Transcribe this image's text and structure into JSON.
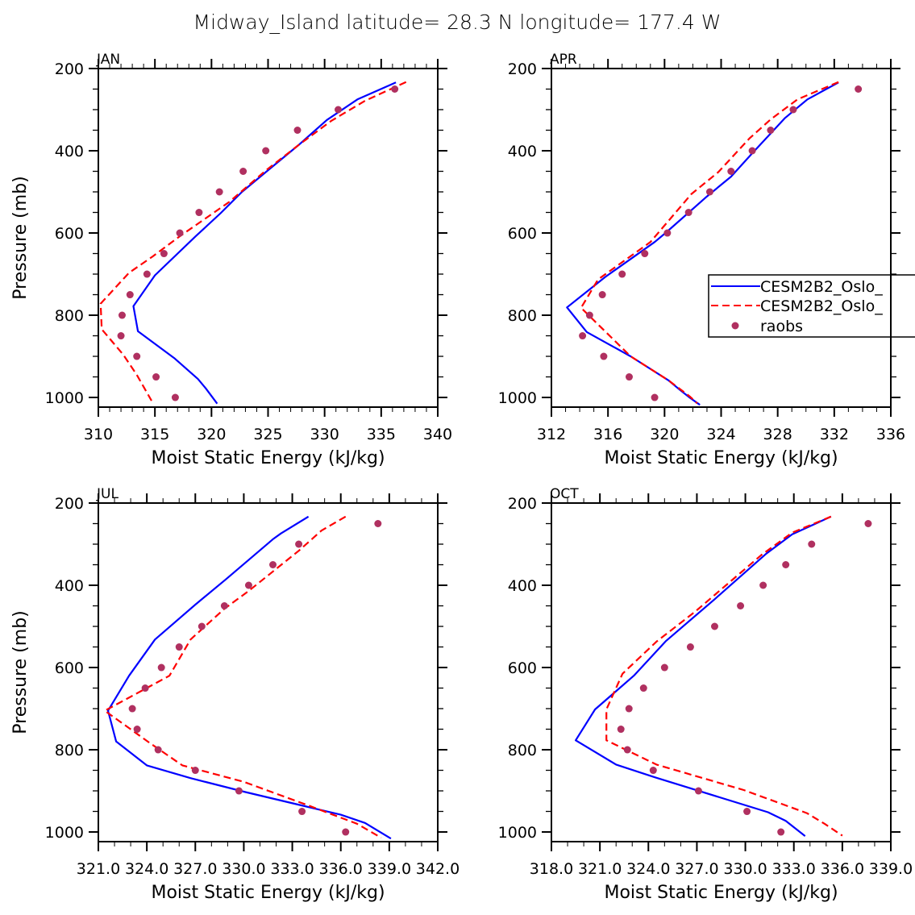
{
  "figure": {
    "title": "Midway_Island   latitude= 28.3 N longitude= 177.4 W"
  },
  "legend": {
    "location": "inside APR panel, right-center (clipped at image edge)",
    "entries": [
      {
        "label": "CESM2B2_Oslo_",
        "style": "solid",
        "color": "#0000FF"
      },
      {
        "label": "CESM2B2_Oslo_",
        "style": "dashed",
        "color": "#FF0000"
      },
      {
        "label": "raobs",
        "style": "marker",
        "color": "#B03060"
      }
    ]
  },
  "chart_data": [
    {
      "type": "line",
      "panel": "JAN",
      "title": "JAN",
      "xlabel": "Moist Static Energy (kJ/kg)",
      "ylabel": "Pressure (mb)",
      "xlim": [
        310,
        340
      ],
      "ylim": [
        1023.5,
        200
      ],
      "y_inverted": true,
      "xticks": [
        310,
        315,
        320,
        325,
        330,
        335,
        340
      ],
      "xtick_labels": [
        "310",
        "315",
        "320",
        "325",
        "330",
        "335",
        "340"
      ],
      "x_minor_per_major": 4,
      "yticks": [
        200,
        400,
        600,
        800,
        1000
      ],
      "ytick_labels": [
        "200",
        "400",
        "600",
        "800",
        "1000"
      ],
      "y_minor_step": 50,
      "grid": false,
      "series": [
        {
          "name": "CESM2B2_Oslo_ (solid)",
          "color": "#0000FF",
          "style": "solid",
          "points": [
            [
              336.3,
              234
            ],
            [
              332.9,
              275
            ],
            [
              330.2,
              325
            ],
            [
              327.7,
              386
            ],
            [
              324.8,
              452
            ],
            [
              322.7,
              500
            ],
            [
              320.8,
              552
            ],
            [
              318.6,
              608
            ],
            [
              315.0,
              703
            ],
            [
              313.1,
              778
            ],
            [
              313.5,
              839
            ],
            [
              316.7,
              904
            ],
            [
              318.8,
              955
            ],
            [
              319.5,
              978
            ],
            [
              320.5,
              1015
            ]
          ]
        },
        {
          "name": "CESM2B2_Oslo_ (dashed)",
          "color": "#FF0000",
          "style": "dashed",
          "points": [
            [
              337.2,
              233
            ],
            [
              333.6,
              278
            ],
            [
              330.6,
              327
            ],
            [
              327.7,
              386
            ],
            [
              324.8,
              448
            ],
            [
              321.6,
              524
            ],
            [
              317.2,
              608
            ],
            [
              314.8,
              657
            ],
            [
              312.7,
              697
            ],
            [
              310.2,
              772
            ],
            [
              310.3,
              834
            ],
            [
              312.2,
              896
            ],
            [
              313.4,
              945
            ],
            [
              314.7,
              1008
            ]
          ]
        },
        {
          "name": "raobs",
          "color": "#B03060",
          "style": "marker",
          "points": [
            [
              336.2,
              250
            ],
            [
              331.2,
              300
            ],
            [
              327.6,
              350
            ],
            [
              324.8,
              400
            ],
            [
              322.8,
              450
            ],
            [
              320.7,
              500
            ],
            [
              318.9,
              550
            ],
            [
              317.2,
              600
            ],
            [
              315.8,
              650
            ],
            [
              314.3,
              700
            ],
            [
              312.8,
              750
            ],
            [
              312.1,
              800
            ],
            [
              312.0,
              850
            ],
            [
              313.4,
              900
            ],
            [
              315.1,
              950
            ],
            [
              316.8,
              1000
            ]
          ]
        }
      ]
    },
    {
      "type": "line",
      "panel": "APR",
      "title": "APR",
      "xlabel": "Moist Static Energy (kJ/kg)",
      "ylabel": "",
      "xlim": [
        312,
        336
      ],
      "ylim": [
        1023.5,
        200
      ],
      "y_inverted": true,
      "xticks": [
        312,
        316,
        320,
        324,
        328,
        332,
        336
      ],
      "xtick_labels": [
        "312",
        "316",
        "320",
        "324",
        "328",
        "332",
        "336"
      ],
      "x_minor_per_major": 3,
      "yticks": [
        200,
        400,
        600,
        800,
        1000
      ],
      "ytick_labels": [
        "200",
        "400",
        "600",
        "800",
        "1000"
      ],
      "y_minor_step": 50,
      "grid": false,
      "series": [
        {
          "name": "CESM2B2_Oslo_ (solid)",
          "color": "#0000FF",
          "style": "solid",
          "points": [
            [
              332.3,
              234
            ],
            [
              330.1,
              275
            ],
            [
              328.5,
              321
            ],
            [
              326.2,
              406
            ],
            [
              324.7,
              463
            ],
            [
              323.0,
              511
            ],
            [
              320.1,
              599
            ],
            [
              319.3,
              622
            ],
            [
              315.8,
              707
            ],
            [
              313.1,
              781
            ],
            [
              314.5,
              841
            ],
            [
              317.6,
              900
            ],
            [
              320.3,
              959
            ],
            [
              321.1,
              982
            ],
            [
              321.8,
              1001
            ],
            [
              322.5,
              1018
            ]
          ]
        },
        {
          "name": "CESM2B2_Oslo_ (dashed)",
          "color": "#FF0000",
          "style": "dashed",
          "points": [
            [
              332.3,
              233
            ],
            [
              330.5,
              259
            ],
            [
              329.4,
              275
            ],
            [
              327.5,
              324
            ],
            [
              326.0,
              370
            ],
            [
              323.8,
              452
            ],
            [
              321.9,
              505
            ],
            [
              319.0,
              622
            ],
            [
              315.3,
              713
            ],
            [
              314.1,
              782
            ],
            [
              317.6,
              900
            ],
            [
              320.3,
              959
            ],
            [
              321.8,
              998
            ],
            [
              322.3,
              1014
            ]
          ]
        },
        {
          "name": "raobs",
          "color": "#B03060",
          "style": "marker",
          "points": [
            [
              333.7,
              250
            ],
            [
              329.1,
              300
            ],
            [
              327.5,
              350
            ],
            [
              326.2,
              400
            ],
            [
              324.7,
              450
            ],
            [
              323.2,
              500
            ],
            [
              321.7,
              550
            ],
            [
              320.2,
              600
            ],
            [
              318.6,
              650
            ],
            [
              317.0,
              700
            ],
            [
              315.6,
              750
            ],
            [
              314.7,
              800
            ],
            [
              314.2,
              850
            ],
            [
              315.7,
              900
            ],
            [
              317.5,
              950
            ],
            [
              319.3,
              1000
            ]
          ]
        }
      ]
    },
    {
      "type": "line",
      "panel": "JUL",
      "title": "JUL",
      "xlabel": "Moist Static Energy (kJ/kg)",
      "ylabel": "Pressure (mb)",
      "xlim": [
        321,
        342
      ],
      "ylim": [
        1023.5,
        200
      ],
      "y_inverted": true,
      "xticks": [
        321,
        324,
        327,
        330,
        333,
        336,
        339,
        342
      ],
      "xtick_labels": [
        "321.0",
        "324.0",
        "327.0",
        "330.0",
        "333.0",
        "336.0",
        "339.0",
        "342.0"
      ],
      "x_minor_per_major": 2,
      "yticks": [
        200,
        400,
        600,
        800,
        1000
      ],
      "ytick_labels": [
        "200",
        "400",
        "600",
        "800",
        "1000"
      ],
      "y_minor_step": 50,
      "grid": false,
      "series": [
        {
          "name": "CESM2B2_Oslo_ (solid)",
          "color": "#0000FF",
          "style": "solid",
          "points": [
            [
              334.0,
              233
            ],
            [
              332.3,
              274
            ],
            [
              331.8,
              288
            ],
            [
              328.9,
              385
            ],
            [
              327.0,
              447
            ],
            [
              324.5,
              532
            ],
            [
              322.9,
              620
            ],
            [
              321.6,
              705
            ],
            [
              322.1,
              780
            ],
            [
              324.0,
              838
            ],
            [
              326.7,
              869
            ],
            [
              330.1,
              903
            ],
            [
              336.0,
              958
            ],
            [
              337.5,
              978
            ],
            [
              339.1,
              1016
            ]
          ]
        },
        {
          "name": "CESM2B2_Oslo_ (dashed)",
          "color": "#FF0000",
          "style": "dashed",
          "points": [
            [
              336.3,
              233
            ],
            [
              334.8,
              267
            ],
            [
              333.4,
              316
            ],
            [
              330.3,
              414
            ],
            [
              328.8,
              457
            ],
            [
              326.7,
              532
            ],
            [
              325.4,
              620
            ],
            [
              321.4,
              705
            ],
            [
              324.2,
              784
            ],
            [
              326.2,
              838
            ],
            [
              330.0,
              878
            ],
            [
              333.9,
              934
            ],
            [
              337.0,
              980
            ],
            [
              338.5,
              1014
            ]
          ]
        },
        {
          "name": "raobs",
          "color": "#B03060",
          "style": "marker",
          "points": [
            [
              338.3,
              250
            ],
            [
              333.4,
              300
            ],
            [
              331.8,
              350
            ],
            [
              330.3,
              400
            ],
            [
              328.8,
              450
            ],
            [
              327.4,
              500
            ],
            [
              326.0,
              550
            ],
            [
              324.9,
              600
            ],
            [
              323.9,
              650
            ],
            [
              323.1,
              700
            ],
            [
              323.4,
              750
            ],
            [
              324.7,
              800
            ],
            [
              327.0,
              850
            ],
            [
              329.7,
              900
            ],
            [
              333.6,
              950
            ],
            [
              336.3,
              1000
            ]
          ]
        }
      ]
    },
    {
      "type": "line",
      "panel": "OCT",
      "title": "OCT",
      "xlabel": "Moist Static Energy (kJ/kg)",
      "ylabel": "",
      "xlim": [
        318,
        339
      ],
      "ylim": [
        1023.5,
        200
      ],
      "y_inverted": true,
      "xticks": [
        318,
        321,
        324,
        327,
        330,
        333,
        336,
        339
      ],
      "xtick_labels": [
        "318.0",
        "321.0",
        "324.0",
        "327.0",
        "330.0",
        "333.0",
        "336.0",
        "339.0"
      ],
      "x_minor_per_major": 2,
      "yticks": [
        200,
        400,
        600,
        800,
        1000
      ],
      "ytick_labels": [
        "200",
        "400",
        "600",
        "800",
        "1000"
      ],
      "y_minor_step": 50,
      "grid": false,
      "series": [
        {
          "name": "CESM2B2_Oslo_ (solid)",
          "color": "#0000FF",
          "style": "solid",
          "points": [
            [
              335.3,
              233
            ],
            [
              332.9,
              276
            ],
            [
              331.3,
              323
            ],
            [
              328.1,
              434
            ],
            [
              325.1,
              535
            ],
            [
              323.1,
              620
            ],
            [
              320.7,
              702
            ],
            [
              319.5,
              777
            ],
            [
              322.0,
              836
            ],
            [
              324.4,
              867
            ],
            [
              331.4,
              952
            ],
            [
              332.5,
              973
            ],
            [
              333.7,
              1010
            ]
          ]
        },
        {
          "name": "CESM2B2_Oslo_ (dashed)",
          "color": "#FF0000",
          "style": "dashed",
          "points": [
            [
              335.3,
              233
            ],
            [
              332.9,
              272
            ],
            [
              331.0,
              326
            ],
            [
              326.9,
              464
            ],
            [
              324.5,
              537
            ],
            [
              322.4,
              615
            ],
            [
              321.4,
              702
            ],
            [
              321.4,
              777
            ],
            [
              324.5,
              836
            ],
            [
              329.9,
              898
            ],
            [
              333.8,
              954
            ],
            [
              334.9,
              980
            ],
            [
              336.0,
              1009
            ]
          ]
        },
        {
          "name": "raobs",
          "color": "#B03060",
          "style": "marker",
          "points": [
            [
              337.6,
              250
            ],
            [
              334.1,
              300
            ],
            [
              332.5,
              350
            ],
            [
              331.1,
              400
            ],
            [
              329.7,
              450
            ],
            [
              328.1,
              500
            ],
            [
              326.6,
              550
            ],
            [
              325.0,
              600
            ],
            [
              323.7,
              650
            ],
            [
              322.8,
              700
            ],
            [
              322.3,
              750
            ],
            [
              322.7,
              800
            ],
            [
              324.3,
              850
            ],
            [
              327.1,
              900
            ],
            [
              330.1,
              950
            ],
            [
              332.2,
              1000
            ]
          ]
        }
      ]
    }
  ]
}
